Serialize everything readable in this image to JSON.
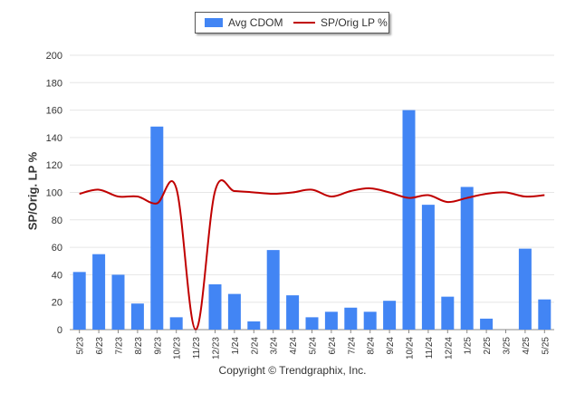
{
  "legend": {
    "bar_label": "Avg CDOM",
    "line_label": "SP/Orig LP %"
  },
  "copyright": "Copyright © Trendgraphix, Inc.",
  "colors": {
    "bar": "#4285f4",
    "line": "#c00000",
    "grid": "#e6e6e6",
    "axis": "#888888"
  },
  "chart_data": {
    "type": "bar",
    "title": "",
    "xlabel": "",
    "ylabel": "SP/Orig. LP %",
    "ylim": [
      0,
      200
    ],
    "yticks": [
      0,
      20,
      40,
      60,
      80,
      100,
      120,
      140,
      160,
      180,
      200
    ],
    "grid": true,
    "legend_position": "top-center",
    "categories": [
      "5/23",
      "6/23",
      "7/23",
      "8/23",
      "9/23",
      "10/23",
      "11/23",
      "12/23",
      "1/24",
      "2/24",
      "3/24",
      "4/24",
      "5/24",
      "6/24",
      "7/24",
      "8/24",
      "9/24",
      "10/24",
      "11/24",
      "12/24",
      "1/25",
      "2/25",
      "3/25",
      "4/25",
      "5/25"
    ],
    "series": [
      {
        "name": "Avg CDOM",
        "type": "bar",
        "values": [
          42,
          55,
          40,
          19,
          148,
          9,
          null,
          33,
          26,
          6,
          58,
          25,
          9,
          13,
          16,
          13,
          21,
          160,
          91,
          24,
          104,
          8,
          null,
          59,
          22
        ]
      },
      {
        "name": "SP/Orig LP %",
        "type": "line",
        "values": [
          99,
          102,
          97,
          97,
          92,
          103,
          0,
          101,
          101,
          100,
          99,
          100,
          102,
          97,
          101,
          103,
          100,
          96,
          98,
          93,
          96,
          99,
          100,
          97,
          98
        ]
      }
    ]
  }
}
